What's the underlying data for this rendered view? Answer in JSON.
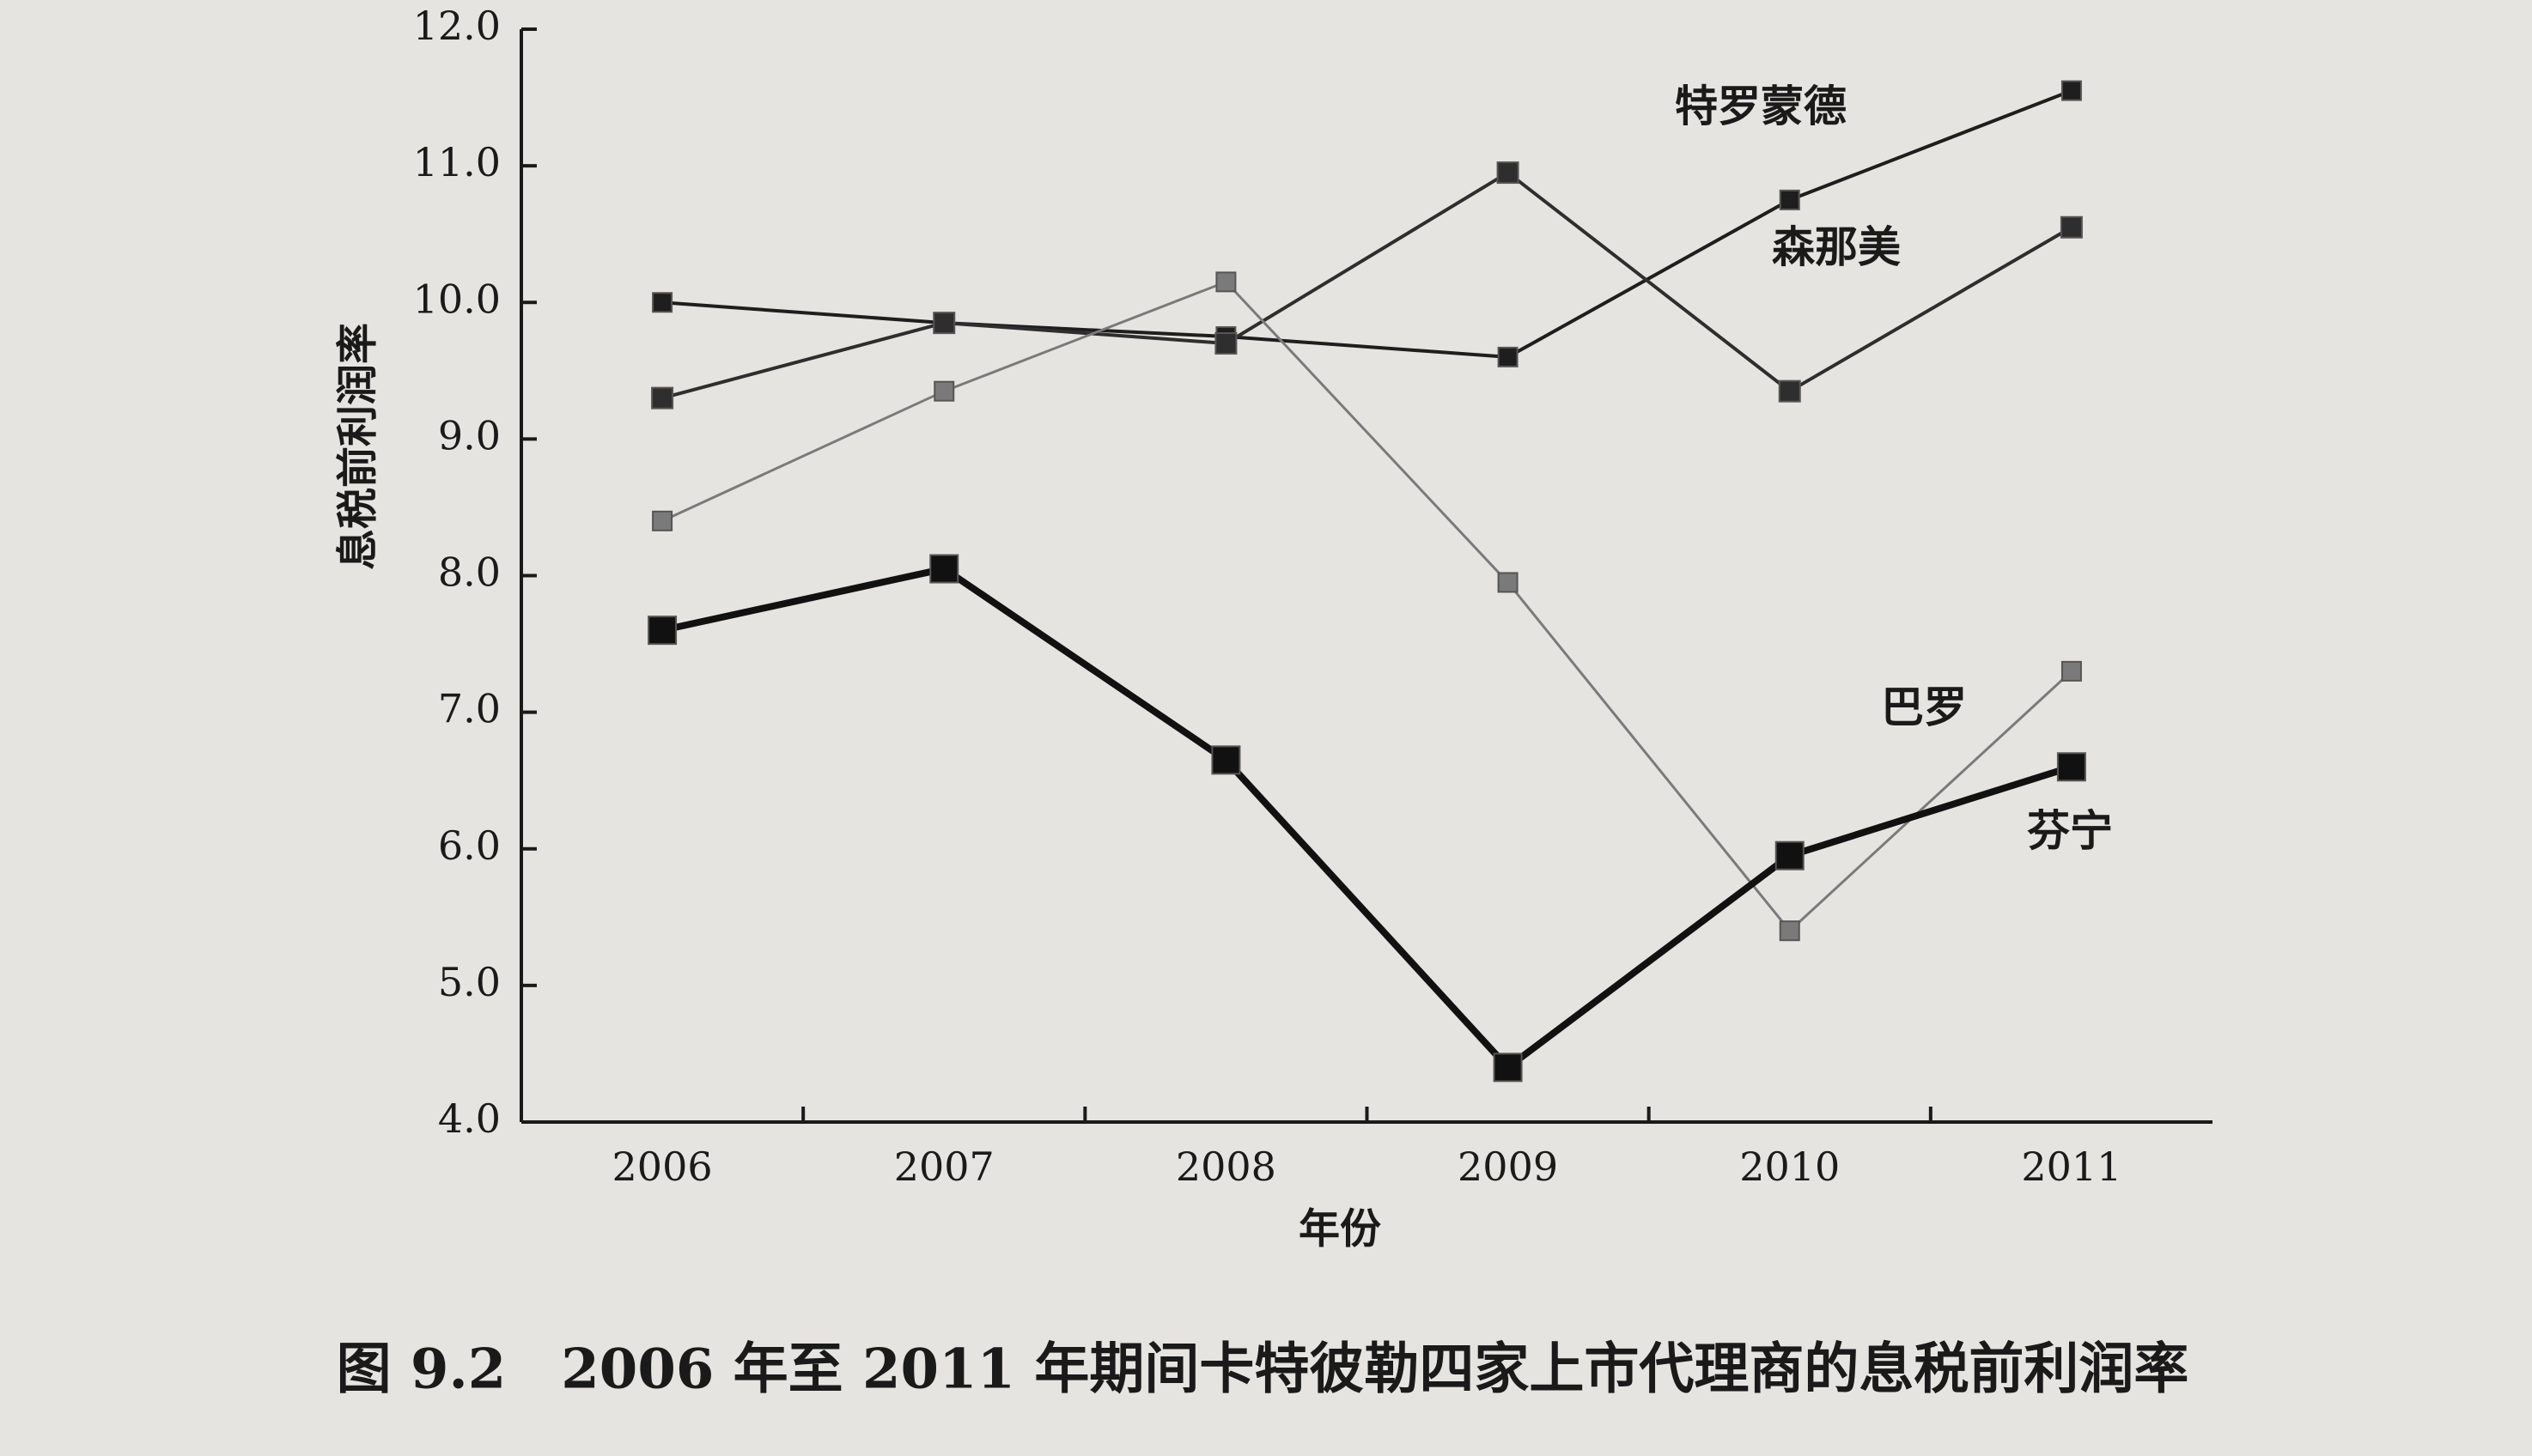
{
  "chart_data": {
    "type": "line",
    "title": "图 9.2　2006 年至 2011 年期间卡特彼勒四家上市代理商的息税前利润率",
    "x_label": "年份",
    "y_label": "息税前利润率",
    "categories": [
      "2006",
      "2007",
      "2008",
      "2009",
      "2010",
      "2011"
    ],
    "ylim": [
      4.0,
      12.0
    ],
    "yticks": [
      {
        "value": 4,
        "label": "4.0"
      },
      {
        "value": 5,
        "label": "5.0"
      },
      {
        "value": 6,
        "label": "6.0"
      },
      {
        "value": 7,
        "label": "7.0"
      },
      {
        "value": 8,
        "label": "8.0"
      },
      {
        "value": 9,
        "label": "9.0"
      },
      {
        "value": 10,
        "label": "10.0"
      },
      {
        "value": 11,
        "label": "11.0"
      },
      {
        "value": 12,
        "label": "12.0"
      }
    ],
    "grid": false,
    "series": [
      {
        "name": "特罗蒙德",
        "color": "#1e1e1e",
        "values": [
          10.0,
          9.85,
          9.75,
          9.6,
          10.75,
          11.55
        ]
      },
      {
        "name": "森那美",
        "color": "#2e2e2e",
        "values": [
          9.3,
          9.85,
          9.7,
          10.95,
          9.35,
          10.55
        ]
      },
      {
        "name": "巴罗",
        "color": "#7a7a7a",
        "values": [
          8.4,
          9.35,
          10.15,
          7.95,
          5.4,
          7.3
        ]
      },
      {
        "name": "芬宁",
        "color": "#111111",
        "values": [
          7.6,
          8.05,
          6.65,
          4.4,
          5.95,
          6.6
        ]
      }
    ]
  }
}
